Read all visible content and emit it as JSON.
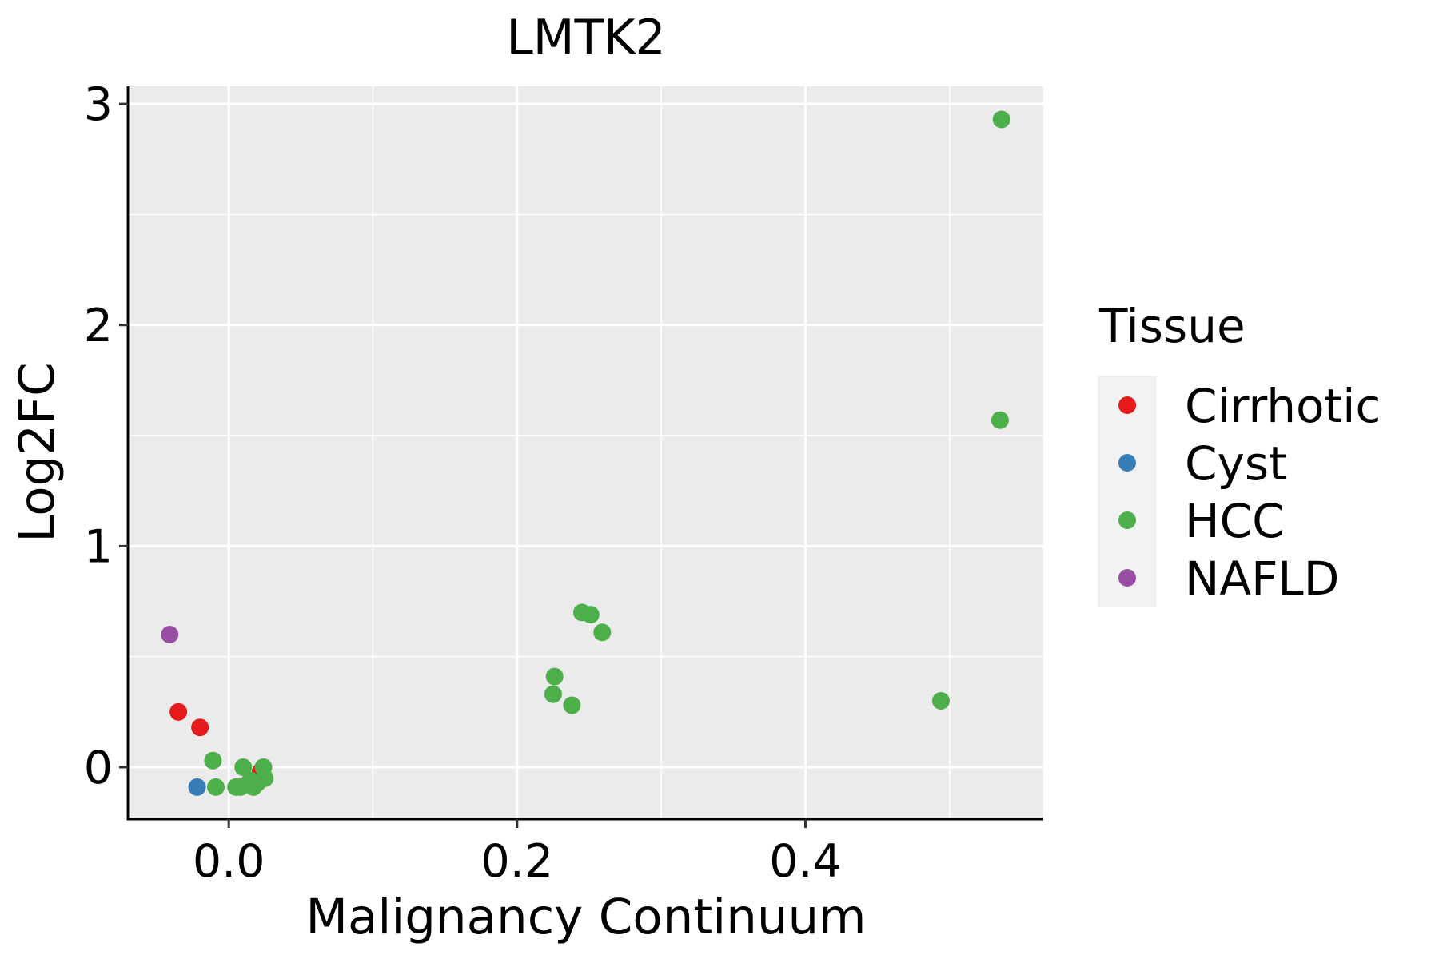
{
  "chart_data": {
    "type": "scatter",
    "title": "LMTK2",
    "xlabel": "Malignancy Continuum",
    "ylabel": "Log2FC",
    "xlim": [
      -0.07,
      0.565
    ],
    "ylim": [
      -0.235,
      3.08
    ],
    "x_ticks": [
      0.0,
      0.2,
      0.4
    ],
    "x_tick_labels": [
      "0.0",
      "0.2",
      "0.4"
    ],
    "y_ticks": [
      0,
      1,
      2,
      3
    ],
    "y_tick_labels": [
      "0",
      "1",
      "2",
      "3"
    ],
    "grid": true,
    "legend": {
      "title": "Tissue",
      "position": "right",
      "entries": [
        {
          "name": "Cirrhotic",
          "color": "#E41A1C"
        },
        {
          "name": "Cyst",
          "color": "#377EB8"
        },
        {
          "name": "HCC",
          "color": "#4DAF4A"
        },
        {
          "name": "NAFLD",
          "color": "#984EA3"
        }
      ]
    },
    "series": [
      {
        "name": "Cirrhotic",
        "color": "#E41A1C",
        "points": [
          [
            -0.035,
            0.25
          ],
          [
            -0.02,
            0.18
          ],
          [
            0.022,
            -0.02
          ]
        ]
      },
      {
        "name": "Cyst",
        "color": "#377EB8",
        "points": [
          [
            -0.022,
            -0.09
          ]
        ]
      },
      {
        "name": "HCC",
        "color": "#4DAF4A",
        "points": [
          [
            -0.011,
            0.03
          ],
          [
            -0.009,
            -0.09
          ],
          [
            0.005,
            -0.09
          ],
          [
            0.008,
            -0.09
          ],
          [
            0.01,
            0.0
          ],
          [
            0.015,
            -0.06
          ],
          [
            0.017,
            -0.09
          ],
          [
            0.02,
            -0.07
          ],
          [
            0.024,
            0.0
          ],
          [
            0.025,
            -0.05
          ],
          [
            0.225,
            0.33
          ],
          [
            0.226,
            0.41
          ],
          [
            0.238,
            0.28
          ],
          [
            0.245,
            0.7
          ],
          [
            0.251,
            0.69
          ],
          [
            0.259,
            0.61
          ],
          [
            0.494,
            0.3
          ],
          [
            0.535,
            1.57
          ],
          [
            0.536,
            2.93
          ]
        ]
      },
      {
        "name": "NAFLD",
        "color": "#984EA3",
        "points": [
          [
            -0.041,
            0.6
          ]
        ]
      }
    ]
  }
}
